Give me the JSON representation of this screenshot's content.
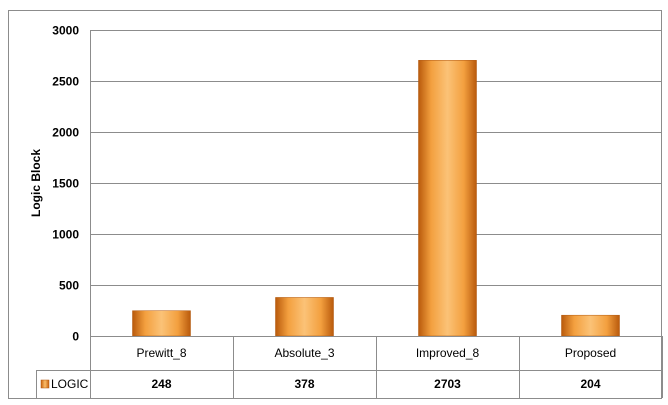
{
  "chart_data": {
    "type": "bar",
    "categories": [
      "Prewitt_8",
      "Absolute_3",
      "Improved_8",
      "Proposed"
    ],
    "series": [
      {
        "name": "LOGIC",
        "values": [
          248,
          378,
          2703,
          204
        ],
        "color": "#f08c1e"
      }
    ],
    "ylabel": "Logic Block",
    "ylim": [
      0,
      3000
    ],
    "yticks": [
      0,
      500,
      1000,
      1500,
      2000,
      2500,
      3000
    ],
    "grid": true,
    "data_table": true,
    "legend_placement": "data-table"
  }
}
